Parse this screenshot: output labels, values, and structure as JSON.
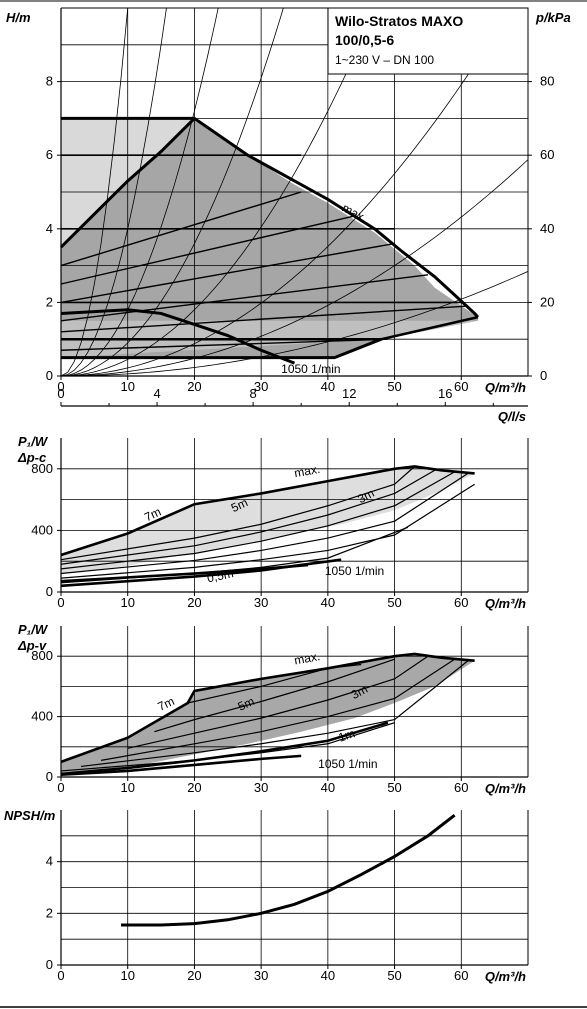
{
  "document": {
    "title_line1": "Wilo-Stratos MAXO",
    "title_line2": "100/0,5-6",
    "subtitle": "1~230 V – DN 100"
  },
  "chart_data": [
    {
      "id": "head",
      "type": "line",
      "ylabel": "H/m",
      "ylabel_right": "p/kPa",
      "xlabel": "Q/m³/h",
      "xlabel_secondary": "Q/l/s",
      "xlim": [
        0,
        70
      ],
      "ylim": [
        0,
        10
      ],
      "ylim_right": [
        0,
        100
      ],
      "x_ticks": [
        0,
        10,
        20,
        30,
        40,
        50,
        60
      ],
      "y_ticks": [
        0,
        2,
        4,
        6,
        8
      ],
      "y_ticks_right": [
        0,
        20,
        40,
        60,
        80
      ],
      "x2_ticks": [
        0,
        4,
        8,
        12,
        16
      ],
      "grid": true,
      "legend": "none",
      "annotations": [
        "max.",
        "1050 1/min"
      ],
      "operating_area": [
        [
          0,
          3.5
        ],
        [
          20,
          7
        ],
        [
          28,
          6
        ],
        [
          35,
          5.2
        ],
        [
          40,
          4.7
        ],
        [
          47,
          3.9
        ],
        [
          53,
          3.0
        ],
        [
          56,
          2.4
        ],
        [
          62.5,
          1.6
        ],
        [
          62.5,
          1.5
        ],
        [
          48,
          1.0
        ],
        [
          41,
          0.5
        ],
        [
          0,
          0.5
        ]
      ],
      "envelopes": [
        {
          "name": "max.",
          "x": [
            0,
            5,
            10,
            15,
            20,
            28,
            35,
            40,
            47,
            51,
            56,
            59,
            62,
            62.5
          ],
          "y": [
            3.5,
            4.4,
            5.3,
            6.1,
            7,
            6,
            5.3,
            4.8,
            4.0,
            3.4,
            2.7,
            2.2,
            1.7,
            1.6
          ]
        },
        {
          "name": "1050 1/min",
          "x": [
            0,
            10,
            15,
            20,
            25,
            30,
            35
          ],
          "y": [
            1.7,
            1.8,
            1.7,
            1.4,
            1.1,
            0.7,
            0.35
          ]
        }
      ],
      "constant_pressure_lines": [
        {
          "x": [
            0,
            20
          ],
          "y": [
            7,
            7
          ]
        },
        {
          "x": [
            0,
            36
          ],
          "y": [
            6,
            6
          ]
        },
        {
          "x": [
            0,
            50
          ],
          "y": [
            4,
            4
          ]
        },
        {
          "x": [
            0,
            60
          ],
          "y": [
            2,
            2
          ]
        }
      ],
      "variable_pressure_lines": [
        {
          "x": [
            0,
            36
          ],
          "y": [
            3.0,
            5.0
          ]
        },
        {
          "x": [
            0,
            44
          ],
          "y": [
            2.5,
            4.35
          ]
        },
        {
          "x": [
            0,
            50
          ],
          "y": [
            2.0,
            3.6
          ]
        },
        {
          "x": [
            0,
            55
          ],
          "y": [
            1.5,
            2.75
          ]
        },
        {
          "x": [
            0,
            61
          ],
          "y": [
            1.2,
            1.9
          ]
        },
        {
          "x": [
            0,
            49
          ],
          "y": [
            0.7,
            1.0
          ]
        }
      ],
      "system_curves": [
        {
          "k": 0.1
        },
        {
          "k": 0.04
        },
        {
          "k": 0.018
        },
        {
          "k": 0.009
        },
        {
          "k": 0.0045
        },
        {
          "k": 0.0022
        },
        {
          "k": 0.0012
        },
        {
          "k": 0.00058
        }
      ]
    },
    {
      "id": "power-dpc",
      "type": "line",
      "ylabel": "P₁/W",
      "ylabel2": "Δp-c",
      "xlabel": "Q/m³/h",
      "xlim": [
        0,
        70
      ],
      "ylim": [
        0,
        1000
      ],
      "x_ticks": [
        0,
        10,
        20,
        30,
        40,
        50,
        60
      ],
      "y_ticks": [
        0,
        400,
        800
      ],
      "grid": true,
      "legend": "none",
      "curve_labels": [
        "max.",
        "7m",
        "5m",
        "3m",
        "0,5m",
        "1050 1/min"
      ],
      "max_curve": {
        "x": [
          0,
          10,
          20,
          30,
          40,
          50,
          53,
          57,
          62
        ],
        "y": [
          240,
          380,
          570,
          640,
          720,
          800,
          815,
          790,
          770
        ]
      },
      "area_lower": {
        "x": [
          62,
          56,
          50,
          42,
          34,
          26,
          18,
          10,
          4,
          0
        ],
        "y": [
          770,
          640,
          530,
          440,
          370,
          300,
          240,
          170,
          140,
          120
        ]
      },
      "lines": [
        {
          "x": [
            0,
            20,
            30,
            40,
            50,
            53
          ],
          "y": [
            210,
            350,
            440,
            560,
            700,
            815
          ]
        },
        {
          "x": [
            0,
            20,
            30,
            40,
            50,
            56
          ],
          "y": [
            180,
            300,
            390,
            500,
            640,
            790
          ]
        },
        {
          "x": [
            0,
            20,
            30,
            40,
            50,
            59
          ],
          "y": [
            150,
            250,
            330,
            430,
            560,
            780
          ]
        },
        {
          "x": [
            0,
            20,
            30,
            40,
            50,
            61
          ],
          "y": [
            120,
            205,
            270,
            350,
            460,
            770
          ]
        },
        {
          "x": [
            0,
            20,
            30,
            40,
            50,
            62
          ],
          "y": [
            90,
            160,
            210,
            270,
            370,
            700
          ]
        },
        {
          "x": [
            0,
            20,
            30,
            40,
            52
          ],
          "y": [
            60,
            120,
            160,
            220,
            420
          ]
        }
      ],
      "low_curves": [
        {
          "name": "0,5m",
          "x": [
            0,
            10,
            20,
            30,
            37
          ],
          "y": [
            70,
            95,
            120,
            150,
            175
          ]
        },
        {
          "name": "1050 1/min",
          "x": [
            0,
            10,
            20,
            30,
            35,
            42
          ],
          "y": [
            40,
            70,
            100,
            140,
            170,
            210
          ]
        }
      ]
    },
    {
      "id": "power-dpv",
      "type": "line",
      "ylabel": "P₁/W",
      "ylabel2": "Δp-v",
      "xlabel": "Q/m³/h",
      "xlim": [
        0,
        70
      ],
      "ylim": [
        0,
        1000
      ],
      "x_ticks": [
        0,
        10,
        20,
        30,
        40,
        50,
        60
      ],
      "y_ticks": [
        0,
        400,
        800
      ],
      "grid": true,
      "legend": "none",
      "curve_labels": [
        "max.",
        "7m",
        "5m",
        "3m",
        "1m",
        "1050 1/min"
      ],
      "max_curve": {
        "x": [
          0,
          10,
          19,
          20,
          30,
          40,
          50,
          53,
          57,
          62
        ],
        "y": [
          100,
          260,
          490,
          570,
          650,
          720,
          800,
          815,
          790,
          770
        ]
      },
      "area_lower": {
        "x": [
          62,
          56,
          50,
          44,
          36,
          28,
          20,
          12,
          6,
          0
        ],
        "y": [
          770,
          600,
          490,
          390,
          300,
          220,
          150,
          80,
          50,
          30
        ]
      },
      "lines": [
        {
          "x": [
            19,
            25,
            30,
            35,
            40,
            45
          ],
          "y": [
            490,
            550,
            600,
            660,
            720,
            745
          ]
        },
        {
          "x": [
            14,
            20,
            30,
            40,
            50
          ],
          "y": [
            300,
            380,
            500,
            630,
            780
          ]
        },
        {
          "x": [
            10,
            20,
            30,
            40,
            50,
            55
          ],
          "y": [
            190,
            290,
            390,
            510,
            650,
            800
          ]
        },
        {
          "x": [
            6,
            20,
            30,
            40,
            50,
            59
          ],
          "y": [
            110,
            220,
            300,
            400,
            520,
            780
          ]
        },
        {
          "x": [
            3,
            20,
            30,
            40,
            50,
            61
          ],
          "y": [
            70,
            160,
            220,
            290,
            380,
            770
          ]
        },
        {
          "x": [
            0,
            20,
            30,
            40,
            50
          ],
          "y": [
            40,
            110,
            160,
            220,
            360
          ]
        }
      ],
      "low_curves": [
        {
          "name": "1m",
          "x": [
            0,
            10,
            20,
            30,
            40,
            49
          ],
          "y": [
            20,
            60,
            110,
            170,
            240,
            360
          ]
        },
        {
          "name": "1050 1/min",
          "x": [
            0,
            10,
            20,
            30,
            36
          ],
          "y": [
            15,
            40,
            80,
            120,
            140
          ]
        }
      ]
    },
    {
      "id": "npsh",
      "type": "line",
      "ylabel": "NPSH/m",
      "xlabel": "Q/m³/h",
      "xlim": [
        0,
        70
      ],
      "ylim": [
        0,
        6
      ],
      "x_ticks": [
        0,
        10,
        20,
        30,
        40,
        50,
        60
      ],
      "y_ticks": [
        0,
        2,
        4
      ],
      "grid": true,
      "legend": "none",
      "series": [
        {
          "x": [
            9,
            15,
            20,
            25,
            30,
            35,
            40,
            45,
            50,
            55,
            59
          ],
          "y": [
            1.55,
            1.55,
            1.6,
            1.75,
            2.0,
            2.35,
            2.85,
            3.5,
            4.2,
            5.0,
            5.8
          ]
        }
      ]
    }
  ]
}
